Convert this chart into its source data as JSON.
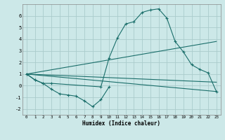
{
  "xlabel": "Humidex (Indice chaleur)",
  "background_color": "#cce8e8",
  "grid_color": "#aacccc",
  "line_color": "#1a6e6a",
  "straight_line1": {
    "x": [
      0,
      23
    ],
    "y": [
      1.0,
      -0.5
    ]
  },
  "straight_line2": {
    "x": [
      0,
      23
    ],
    "y": [
      1.0,
      0.3
    ]
  },
  "straight_line3": {
    "x": [
      0,
      23
    ],
    "y": [
      1.0,
      3.8
    ]
  },
  "curve_low_x": [
    0,
    1,
    2,
    3,
    4,
    5,
    6,
    7,
    8,
    9,
    10
  ],
  "curve_low_y": [
    1.0,
    0.5,
    0.2,
    -0.3,
    -0.7,
    -0.8,
    -0.9,
    -1.3,
    -1.8,
    -1.2,
    -0.1
  ],
  "curve_main_x": [
    0,
    1,
    2,
    3,
    9,
    10,
    11,
    12,
    13,
    14,
    15,
    16,
    17,
    18,
    19,
    20,
    21,
    22,
    23
  ],
  "curve_main_y": [
    1.0,
    0.5,
    0.2,
    0.2,
    -0.1,
    2.4,
    4.1,
    5.3,
    5.5,
    6.3,
    6.5,
    6.6,
    5.8,
    3.8,
    2.9,
    1.8,
    1.4,
    1.1,
    -0.5
  ],
  "xlim": [
    -0.5,
    23.5
  ],
  "ylim": [
    -2.5,
    7.0
  ],
  "yticks": [
    -2,
    -1,
    0,
    1,
    2,
    3,
    4,
    5,
    6
  ],
  "xticks": [
    0,
    1,
    2,
    3,
    4,
    5,
    6,
    7,
    8,
    9,
    10,
    11,
    12,
    13,
    14,
    15,
    16,
    17,
    18,
    19,
    20,
    21,
    22,
    23
  ]
}
